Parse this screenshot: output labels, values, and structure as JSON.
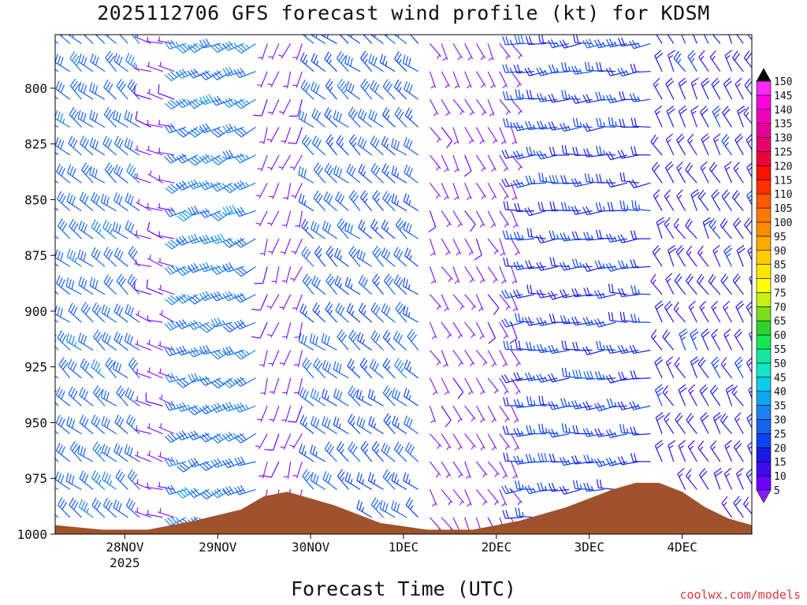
{
  "chart_data": {
    "type": "wind-barb-profile",
    "title": "2025112706 GFS forecast wind profile (kt) for KDSM",
    "xlabel": "Forecast Time (UTC)",
    "credit": "coolwx.com/models",
    "y_axis": {
      "label": "",
      "reversed": true,
      "range": [
        1000,
        776
      ],
      "ticks": [
        "800",
        "825",
        "850",
        "875",
        "900",
        "925",
        "950",
        "975",
        "1000"
      ]
    },
    "x_axis": {
      "range_hours": [
        0,
        180
      ],
      "ticks": [
        {
          "label": "28NOV",
          "sub": "2025"
        },
        {
          "label": "29NOV",
          "sub": ""
        },
        {
          "label": "30NOV",
          "sub": ""
        },
        {
          "label": "1DEC",
          "sub": ""
        },
        {
          "label": "2DEC",
          "sub": ""
        },
        {
          "label": "3DEC",
          "sub": ""
        },
        {
          "label": "4DEC",
          "sub": ""
        }
      ]
    },
    "colorbar": {
      "units": "kt",
      "levels": [
        "5",
        "10",
        "15",
        "20",
        "25",
        "30",
        "35",
        "40",
        "45",
        "50",
        "55",
        "60",
        "65",
        "70",
        "75",
        "80",
        "85",
        "90",
        "95",
        "100",
        "105",
        "110",
        "115",
        "120",
        "125",
        "130",
        "135",
        "140",
        "145",
        "150"
      ],
      "colors": [
        "#8c1cff",
        "#6a00ff",
        "#3f0ef0",
        "#1a1ae6",
        "#0a44f5",
        "#1663f0",
        "#1e82f0",
        "#12a6f0",
        "#0ecbe8",
        "#12e6c8",
        "#12e6a0",
        "#14e650",
        "#2ed22a",
        "#7ade1a",
        "#c8f012",
        "#ffff00",
        "#ffe600",
        "#ffcc00",
        "#ffaa00",
        "#ff8c00",
        "#ff7a00",
        "#ff5a00",
        "#ff3000",
        "#ff1000",
        "#f0003c",
        "#e6006e",
        "#e60096",
        "#f000be",
        "#ff00dc",
        "#ff28ff"
      ]
    },
    "series": [
      {
        "hour_range": [
          0,
          24
        ],
        "direction_deg": 310,
        "speed_kt": [
          30,
          35
        ]
      },
      {
        "hour_range": [
          24,
          33
        ],
        "direction_deg": 290,
        "speed_kt": [
          5,
          10
        ]
      },
      {
        "hour_range": [
          33,
          52
        ],
        "direction_deg": 245,
        "speed_kt": [
          30,
          40
        ]
      },
      {
        "hour_range": [
          52,
          66
        ],
        "direction_deg": 200,
        "speed_kt": [
          5,
          10
        ]
      },
      {
        "hour_range": [
          66,
          96
        ],
        "direction_deg": 310,
        "speed_kt": [
          25,
          35
        ]
      },
      {
        "hour_range": [
          96,
          120
        ],
        "direction_deg": 150,
        "speed_kt": [
          5,
          10
        ]
      },
      {
        "hour_range": [
          120,
          156
        ],
        "direction_deg": 265,
        "speed_kt": [
          20,
          30
        ]
      },
      {
        "hour_range": [
          156,
          180
        ],
        "direction_deg": 330,
        "speed_kt": [
          15,
          25
        ]
      }
    ],
    "terrain_surface_hpa": [
      {
        "hour": 0,
        "p": 996
      },
      {
        "hour": 12,
        "p": 998
      },
      {
        "hour": 24,
        "p": 998
      },
      {
        "hour": 36,
        "p": 994
      },
      {
        "hour": 48,
        "p": 989
      },
      {
        "hour": 54,
        "p": 983
      },
      {
        "hour": 60,
        "p": 981
      },
      {
        "hour": 72,
        "p": 987
      },
      {
        "hour": 84,
        "p": 995
      },
      {
        "hour": 96,
        "p": 998
      },
      {
        "hour": 108,
        "p": 998
      },
      {
        "hour": 120,
        "p": 994
      },
      {
        "hour": 132,
        "p": 988
      },
      {
        "hour": 144,
        "p": 980
      },
      {
        "hour": 150,
        "p": 977
      },
      {
        "hour": 156,
        "p": 977
      },
      {
        "hour": 162,
        "p": 981
      },
      {
        "hour": 168,
        "p": 988
      },
      {
        "hour": 174,
        "p": 993
      },
      {
        "hour": 180,
        "p": 996
      }
    ],
    "colors": {
      "terrain": "#a0522d",
      "axis": "#000000",
      "credit": "#e0353b"
    }
  }
}
